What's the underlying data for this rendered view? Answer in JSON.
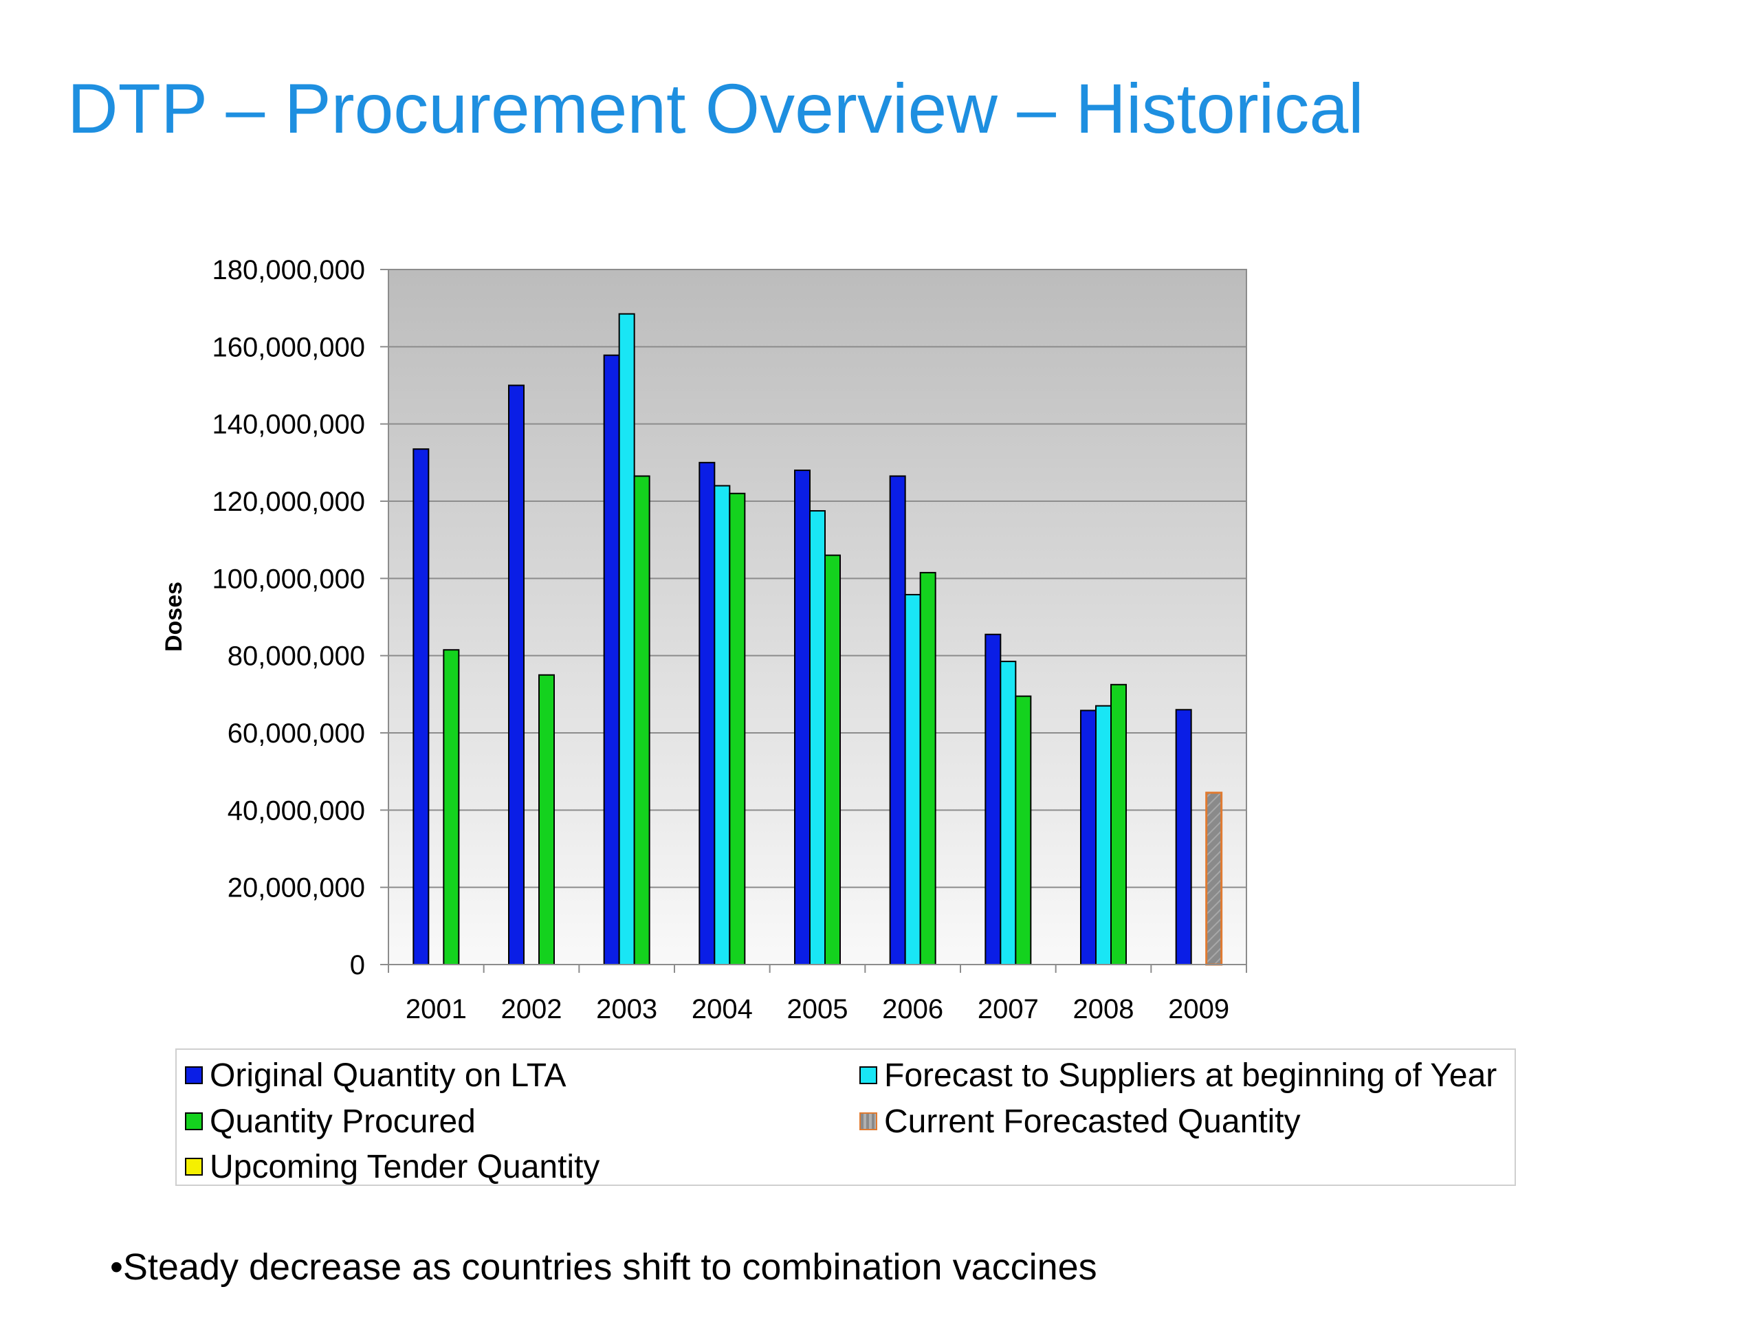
{
  "slide": {
    "title": "DTP – Procurement Overview – Historical",
    "bullet": "•Steady decrease as countries shift to combination vaccines"
  },
  "chart_data": {
    "type": "bar",
    "ylabel": "Doses",
    "ylim": [
      0,
      180000000
    ],
    "yticks": [
      "0",
      "20,000,000",
      "40,000,000",
      "60,000,000",
      "80,000,000",
      "100,000,000",
      "120,000,000",
      "140,000,000",
      "160,000,000",
      "180,000,000"
    ],
    "grid": true,
    "legend_position": "bottom",
    "categories": [
      "2001",
      "2002",
      "2003",
      "2004",
      "2005",
      "2006",
      "2007",
      "2008",
      "2009"
    ],
    "series": [
      {
        "name": "Original Quantity on LTA",
        "color": "#0a1ee6",
        "values": [
          133500000,
          150000000,
          157800000,
          130000000,
          128000000,
          126500000,
          85500000,
          65800000,
          66000000
        ]
      },
      {
        "name": "Forecast to Suppliers at beginning of Year",
        "color": "#19e6f5",
        "values": [
          null,
          null,
          168500000,
          124000000,
          117500000,
          95800000,
          78500000,
          67000000,
          null
        ]
      },
      {
        "name": "Quantity Procured",
        "color": "#14d21e",
        "values": [
          81500000,
          75000000,
          126500000,
          122000000,
          106000000,
          101500000,
          69500000,
          72500000,
          null
        ]
      },
      {
        "name": "Current Forecasted Quantity",
        "color": "#8a8a8a",
        "border": "#e07a30",
        "values": [
          null,
          null,
          null,
          null,
          null,
          null,
          null,
          null,
          44500000
        ]
      },
      {
        "name": "Upcoming Tender Quantity",
        "color": "#f5f000",
        "values": [
          null,
          null,
          null,
          null,
          null,
          null,
          null,
          null,
          null
        ]
      }
    ]
  }
}
